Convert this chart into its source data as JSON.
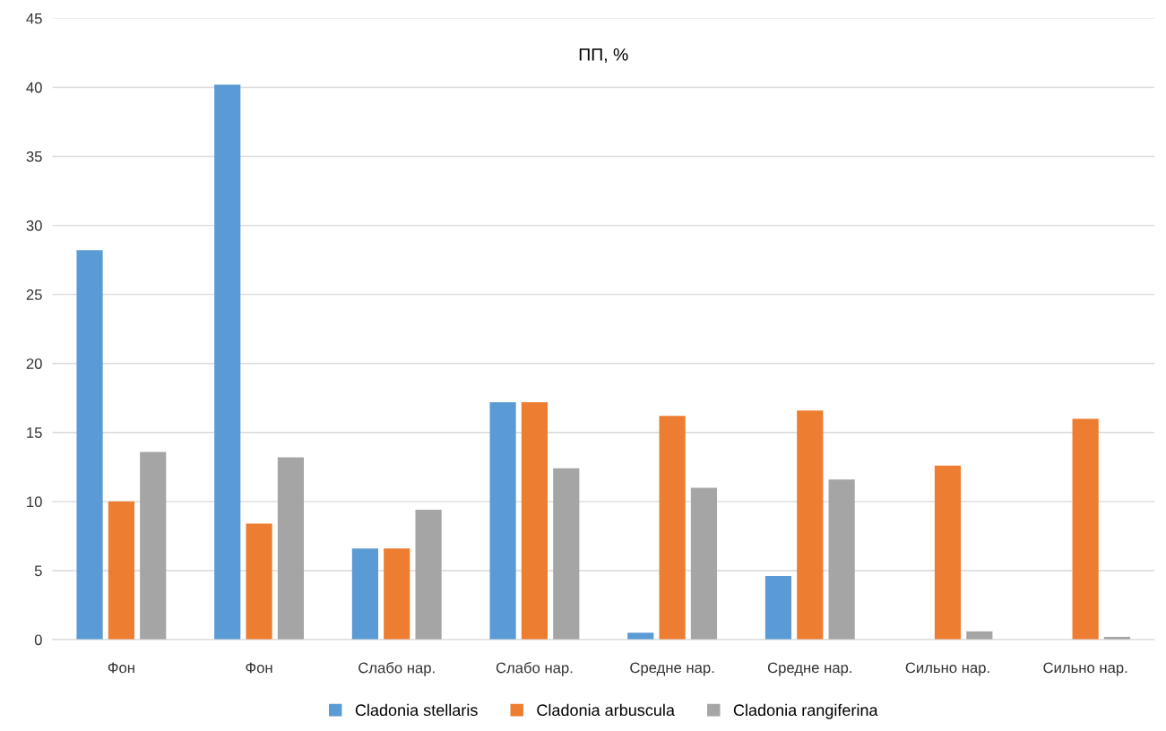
{
  "chart_data": {
    "type": "bar",
    "title": "ПП, %",
    "categories": [
      "Фон",
      "Фон",
      "Слабо нар.",
      "Слабо нар.",
      "Средне нар.",
      "Средне нар.",
      "Сильно нар.",
      "Сильно нар."
    ],
    "series": [
      {
        "name": "Cladonia stellaris",
        "color": "#5b9bd5",
        "values": [
          28.2,
          40.2,
          6.6,
          17.2,
          0.5,
          4.6,
          0,
          0
        ]
      },
      {
        "name": "Cladonia arbuscula",
        "color": "#ed7d31",
        "values": [
          10.0,
          8.4,
          6.6,
          17.2,
          16.2,
          16.6,
          12.6,
          16.0
        ]
      },
      {
        "name": "Cladonia rangiferina",
        "color": "#a5a5a5",
        "values": [
          13.6,
          13.2,
          9.4,
          12.4,
          11.0,
          11.6,
          0.6,
          0.2
        ]
      }
    ],
    "ylim": [
      0,
      45
    ],
    "yticks": [
      0,
      5,
      10,
      15,
      20,
      25,
      30,
      35,
      40,
      45
    ],
    "grid": "y",
    "legend": "bottom"
  }
}
